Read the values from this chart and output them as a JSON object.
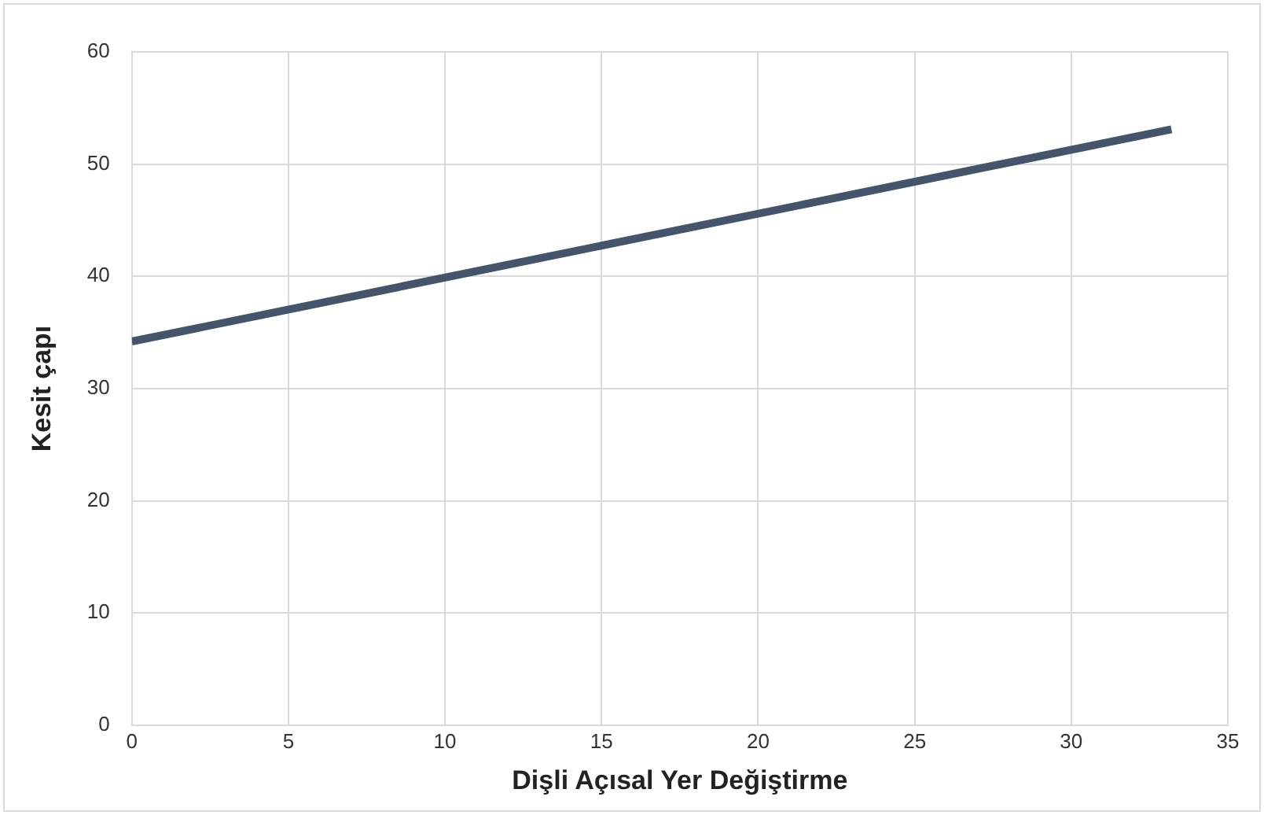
{
  "chart_data": {
    "type": "line",
    "xlabel": "Dişli Açısal Yer Değiştirme",
    "ylabel": "Kesit çapı",
    "series": [
      {
        "color": "#44546a",
        "x": [
          0,
          33.2
        ],
        "values": [
          34.2,
          53.1
        ]
      }
    ],
    "xlim": [
      0,
      35
    ],
    "xticks": [
      0,
      5,
      10,
      15,
      20,
      25,
      30,
      35
    ],
    "ylim": [
      0,
      60
    ],
    "yticks": [
      0,
      10,
      20,
      30,
      40,
      50,
      60
    ],
    "grid": true,
    "legend": false,
    "marker": "none",
    "line_style": "solid"
  }
}
